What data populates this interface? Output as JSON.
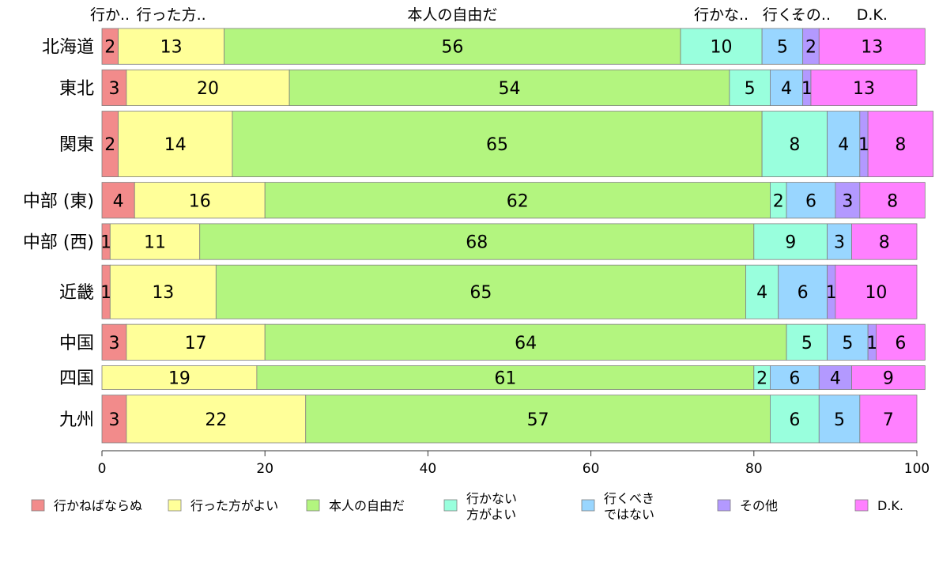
{
  "chart_data": {
    "type": "bar",
    "orientation": "horizontal",
    "stacked": true,
    "categories": [
      "北海道",
      "東北",
      "関東",
      "中部 (東)",
      "中部 (西)",
      "近畿",
      "中国",
      "四国",
      "九州"
    ],
    "column_labels": [
      "行か..",
      "行った方..",
      "本人の自由だ",
      "行かな..",
      "行く..",
      "その..",
      "D.K."
    ],
    "series": [
      {
        "name": "行かねばならぬ",
        "values": [
          2,
          3,
          2,
          4,
          1,
          1,
          3,
          0,
          3
        ],
        "color": "#f28b8b"
      },
      {
        "name": "行った方がよい",
        "values": [
          13,
          20,
          14,
          16,
          11,
          13,
          17,
          19,
          22
        ],
        "color": "#ffff99"
      },
      {
        "name": "本人の自由だ",
        "values": [
          56,
          54,
          65,
          62,
          68,
          65,
          64,
          61,
          57
        ],
        "color": "#b3f57f"
      },
      {
        "name": "行かない方がよい",
        "values": [
          10,
          5,
          8,
          2,
          9,
          4,
          5,
          2,
          6
        ],
        "color": "#99ffdd"
      },
      {
        "name": "行くべきではない",
        "values": [
          5,
          4,
          4,
          6,
          3,
          6,
          5,
          6,
          5
        ],
        "color": "#99d6ff"
      },
      {
        "name": "その他",
        "values": [
          2,
          1,
          1,
          3,
          0,
          1,
          1,
          4,
          0
        ],
        "color": "#b399ff"
      },
      {
        "name": "D.K.",
        "values": [
          13,
          13,
          8,
          8,
          8,
          10,
          6,
          9,
          7
        ],
        "color": "#ff80ff"
      }
    ],
    "row_shares": [
      0.06,
      0.06,
      0.11,
      0.06,
      0.06,
      0.09,
      0.06,
      0.04,
      0.08
    ],
    "xlim": [
      0,
      100
    ],
    "xticks": [
      "0",
      "20",
      "40",
      "60",
      "80",
      "100"
    ],
    "legend_position": "bottom"
  }
}
